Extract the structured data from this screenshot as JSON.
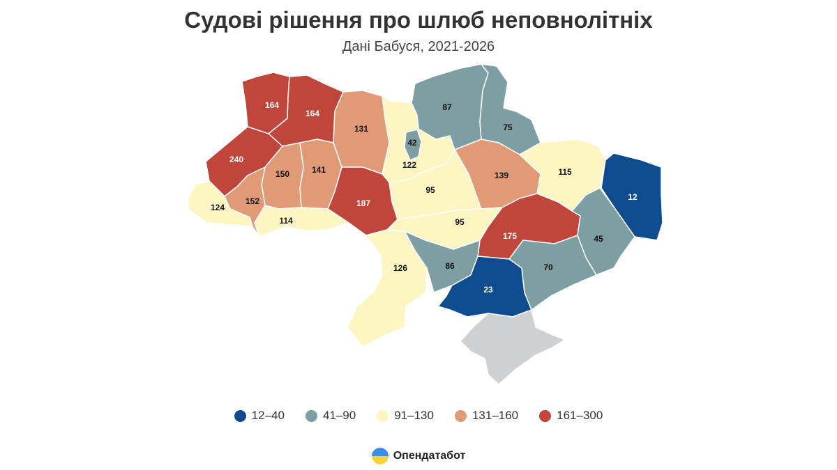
{
  "header": {
    "title": "Судові рішення про шлюб неповнолітніх",
    "subtitle": "Дані Бабуся, 2021-2026"
  },
  "map": {
    "regions": [
      {
        "id": "volyn",
        "value": "164",
        "color": "#c0453b"
      },
      {
        "id": "rivne",
        "value": "164",
        "color": "#c0453b"
      },
      {
        "id": "zhytomyr",
        "value": "131",
        "color": "#e09a76"
      },
      {
        "id": "kyiv-oblast",
        "value": "122",
        "color": "#fdf6c2"
      },
      {
        "id": "kyiv-city",
        "value": "42",
        "color": "#7d9fa3"
      },
      {
        "id": "chernihiv",
        "value": "87",
        "color": "#7d9fa3"
      },
      {
        "id": "sumy",
        "value": "75",
        "color": "#7d9fa3"
      },
      {
        "id": "lviv",
        "value": "240",
        "color": "#c0453b"
      },
      {
        "id": "ternopil",
        "value": "150",
        "color": "#e09a76"
      },
      {
        "id": "khmelnytskyi",
        "value": "141",
        "color": "#e09a76"
      },
      {
        "id": "vinnytsia",
        "value": "187",
        "color": "#c0453b"
      },
      {
        "id": "cherkasy",
        "value": "95",
        "color": "#fdf6c2"
      },
      {
        "id": "poltava",
        "value": "139",
        "color": "#e09a76"
      },
      {
        "id": "kharkiv",
        "value": "115",
        "color": "#fdf6c2"
      },
      {
        "id": "luhansk",
        "value": "12",
        "color": "#0f4b8f"
      },
      {
        "id": "zakarpattia",
        "value": "124",
        "color": "#fdf6c2"
      },
      {
        "id": "ivano-frankivsk",
        "value": "152",
        "color": "#e09a76"
      },
      {
        "id": "chernivtsi",
        "value": "114",
        "color": "#fdf6c2"
      },
      {
        "id": "kirovohrad",
        "value": "95",
        "color": "#fdf6c2"
      },
      {
        "id": "dnipropetrovsk",
        "value": "175",
        "color": "#c0453b"
      },
      {
        "id": "donetsk",
        "value": "45",
        "color": "#7d9fa3"
      },
      {
        "id": "odesa",
        "value": "126",
        "color": "#fdf6c2"
      },
      {
        "id": "mykolaiv",
        "value": "86",
        "color": "#7d9fa3"
      },
      {
        "id": "kherson",
        "value": "23",
        "color": "#0f4b8f"
      },
      {
        "id": "zaporizhzhia",
        "value": "70",
        "color": "#7d9fa3"
      },
      {
        "id": "crimea",
        "value": "",
        "color": "#cfd0d2"
      }
    ]
  },
  "legend": [
    {
      "label": "12–40",
      "color": "#0f4b8f"
    },
    {
      "label": "41–90",
      "color": "#7d9fa3"
    },
    {
      "label": "91–130",
      "color": "#fdf6c2"
    },
    {
      "label": "131–160",
      "color": "#e09a76"
    },
    {
      "label": "161–300",
      "color": "#c0453b"
    }
  ],
  "brand": {
    "name": "Опендатабот",
    "icon": "opendatabot-logo-icon"
  }
}
